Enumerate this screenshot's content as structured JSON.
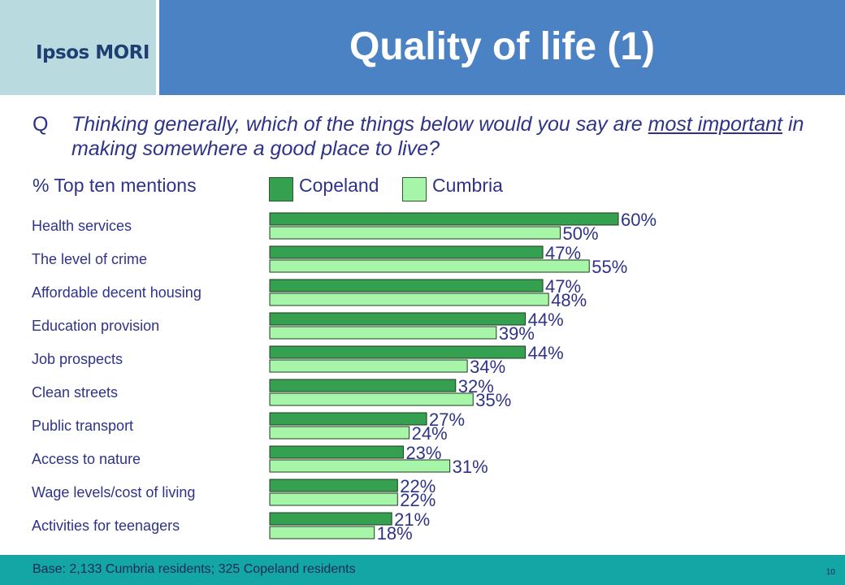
{
  "header": {
    "logo_text": "Ipsos MORI",
    "title": "Quality of life (1)"
  },
  "question": {
    "letter": "Q",
    "text_before": "Thinking generally, which of the things below would you say are ",
    "text_underlined": "most important",
    "text_after": " in making somewhere a good place to live?"
  },
  "subtitle": "% Top ten mentions",
  "legend": {
    "items": [
      {
        "label": "Copeland",
        "color": "#35a04f"
      },
      {
        "label": "Cumbria",
        "color": "#a6f5a9"
      }
    ]
  },
  "chart_data": {
    "type": "bar",
    "orientation": "horizontal",
    "categories": [
      "Health services",
      "The level of crime",
      "Affordable decent housing",
      "Education provision",
      "Job prospects",
      "Clean streets",
      "Public transport",
      "Access to nature",
      "Wage levels/cost of living",
      "Activities for teenagers"
    ],
    "series": [
      {
        "name": "Copeland",
        "color": "#35a04f",
        "values": [
          60,
          47,
          47,
          44,
          44,
          32,
          27,
          23,
          22,
          21
        ]
      },
      {
        "name": "Cumbria",
        "color": "#a6f5a9",
        "values": [
          50,
          55,
          48,
          39,
          34,
          35,
          24,
          31,
          22,
          18
        ]
      }
    ],
    "value_suffix": "%",
    "xlim": [
      0,
      100
    ]
  },
  "footer": {
    "base": "Base: 2,133 Cumbria residents; 325 Copeland residents",
    "page_number": "10"
  }
}
